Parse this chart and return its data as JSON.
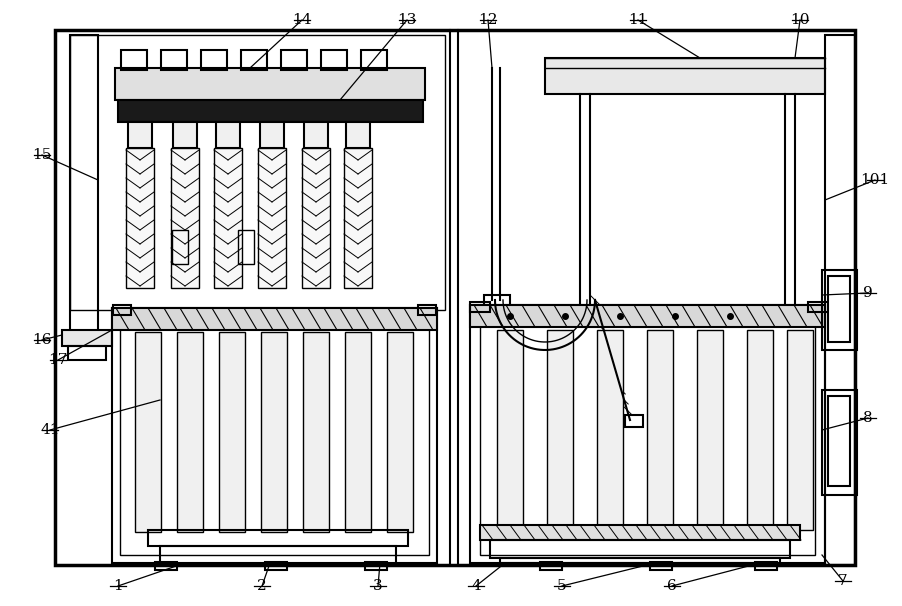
{
  "bg_color": "#ffffff",
  "line_color": "#000000",
  "fig_width": 9.02,
  "fig_height": 6.06
}
